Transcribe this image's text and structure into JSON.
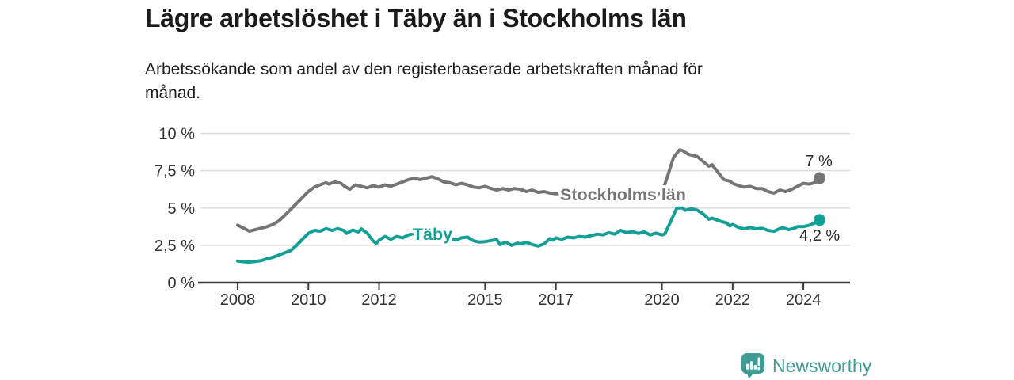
{
  "header": {
    "title": "Lägre arbetslöshet i Täby än i Stockholms län",
    "subtitle": "Arbetssökande som andel av den registerbaserade arbetskraften månad för\nmånad."
  },
  "logo": {
    "text": "Newsworthy",
    "icon": "newsworthy-speech-bubble-bar-chart-icon",
    "color": "#3E9C94"
  },
  "colors": {
    "stockholm_line": "#757575",
    "taby_line": "#12A096",
    "axis": "#3a3a3a",
    "gridline": "#dcdcdc",
    "tick_text": "#333333"
  },
  "chart_data": {
    "type": "line",
    "title": "Lägre arbetslöshet i Täby än i Stockholms län",
    "subtitle": "Arbetssökande som andel av den registerbaserade arbetskraften månad för månad.",
    "unit": "%",
    "xlabel": "",
    "ylabel": "",
    "grid": "horizontal",
    "legend_position": "inline-labels",
    "xlim": [
      2006.88,
      2025.32
    ],
    "ylim": [
      0,
      10
    ],
    "x_ticks": [
      {
        "value": 2008,
        "label": "2008"
      },
      {
        "value": 2010,
        "label": "2010"
      },
      {
        "value": 2012,
        "label": "2012"
      },
      {
        "value": 2015,
        "label": "2015"
      },
      {
        "value": 2017,
        "label": "2017"
      },
      {
        "value": 2020,
        "label": "2020"
      },
      {
        "value": 2022,
        "label": "2022"
      },
      {
        "value": 2024,
        "label": "2024"
      }
    ],
    "y_ticks": [
      {
        "value": 0,
        "label": "0 %"
      },
      {
        "value": 2.5,
        "label": "2,5 %"
      },
      {
        "value": 5,
        "label": "5 %"
      },
      {
        "value": 7.5,
        "label": "7,5 %"
      },
      {
        "value": 10,
        "label": "10 %"
      }
    ],
    "series": [
      {
        "name": "Stockholms län",
        "color": "#757575",
        "end_value": 7.0,
        "end_label": "7 %",
        "end_label_offset": {
          "dx": -1,
          "dy": -15
        },
        "label_pos": {
          "x": 2017.12,
          "y": 5.51
        },
        "points": [
          [
            2008.0,
            3.85
          ],
          [
            2008.17,
            3.65
          ],
          [
            2008.33,
            3.45
          ],
          [
            2008.5,
            3.55
          ],
          [
            2008.67,
            3.65
          ],
          [
            2008.83,
            3.75
          ],
          [
            2009.0,
            3.9
          ],
          [
            2009.17,
            4.15
          ],
          [
            2009.33,
            4.5
          ],
          [
            2009.5,
            4.9
          ],
          [
            2009.67,
            5.3
          ],
          [
            2009.83,
            5.7
          ],
          [
            2010.0,
            6.1
          ],
          [
            2010.17,
            6.4
          ],
          [
            2010.33,
            6.55
          ],
          [
            2010.5,
            6.7
          ],
          [
            2010.58,
            6.6
          ],
          [
            2010.75,
            6.75
          ],
          [
            2010.92,
            6.65
          ],
          [
            2011.0,
            6.5
          ],
          [
            2011.17,
            6.25
          ],
          [
            2011.33,
            6.55
          ],
          [
            2011.5,
            6.45
          ],
          [
            2011.67,
            6.35
          ],
          [
            2011.83,
            6.5
          ],
          [
            2012.0,
            6.4
          ],
          [
            2012.17,
            6.55
          ],
          [
            2012.33,
            6.45
          ],
          [
            2012.5,
            6.6
          ],
          [
            2012.67,
            6.75
          ],
          [
            2012.83,
            6.9
          ],
          [
            2013.0,
            7.0
          ],
          [
            2013.17,
            6.9
          ],
          [
            2013.33,
            7.0
          ],
          [
            2013.5,
            7.1
          ],
          [
            2013.67,
            6.95
          ],
          [
            2013.83,
            6.75
          ],
          [
            2014.0,
            6.7
          ],
          [
            2014.17,
            6.55
          ],
          [
            2014.33,
            6.65
          ],
          [
            2014.5,
            6.55
          ],
          [
            2014.67,
            6.4
          ],
          [
            2014.83,
            6.35
          ],
          [
            2015.0,
            6.45
          ],
          [
            2015.17,
            6.3
          ],
          [
            2015.33,
            6.2
          ],
          [
            2015.5,
            6.3
          ],
          [
            2015.67,
            6.2
          ],
          [
            2015.83,
            6.3
          ],
          [
            2016.0,
            6.25
          ],
          [
            2016.17,
            6.1
          ],
          [
            2016.33,
            6.2
          ],
          [
            2016.5,
            6.05
          ],
          [
            2016.67,
            6.1
          ],
          [
            2016.83,
            6.0
          ],
          [
            2017.0,
            5.95
          ],
          [
            2017.25,
            6.0
          ],
          [
            2017.5,
            5.9
          ],
          [
            2017.75,
            5.95
          ],
          [
            2018.0,
            5.85
          ],
          [
            2018.25,
            5.9
          ],
          [
            2018.5,
            5.8
          ],
          [
            2018.75,
            5.85
          ],
          [
            2019.0,
            5.8
          ],
          [
            2019.25,
            5.85
          ],
          [
            2019.5,
            5.8
          ],
          [
            2019.75,
            5.9
          ],
          [
            2020.0,
            6.0
          ],
          [
            2020.17,
            7.2
          ],
          [
            2020.33,
            8.4
          ],
          [
            2020.5,
            8.9
          ],
          [
            2020.58,
            8.85
          ],
          [
            2020.75,
            8.6
          ],
          [
            2020.92,
            8.5
          ],
          [
            2021.0,
            8.45
          ],
          [
            2021.17,
            8.1
          ],
          [
            2021.33,
            7.8
          ],
          [
            2021.42,
            7.9
          ],
          [
            2021.58,
            7.4
          ],
          [
            2021.75,
            6.9
          ],
          [
            2021.92,
            6.8
          ],
          [
            2022.0,
            6.65
          ],
          [
            2022.17,
            6.5
          ],
          [
            2022.33,
            6.4
          ],
          [
            2022.5,
            6.45
          ],
          [
            2022.67,
            6.3
          ],
          [
            2022.83,
            6.3
          ],
          [
            2023.0,
            6.1
          ],
          [
            2023.17,
            6.0
          ],
          [
            2023.33,
            6.2
          ],
          [
            2023.5,
            6.1
          ],
          [
            2023.67,
            6.25
          ],
          [
            2023.83,
            6.45
          ],
          [
            2024.0,
            6.65
          ],
          [
            2024.17,
            6.6
          ],
          [
            2024.33,
            6.7
          ],
          [
            2024.46,
            7.0
          ]
        ]
      },
      {
        "name": "Täby",
        "color": "#12A096",
        "end_value": 4.2,
        "end_label": "4,2 %",
        "end_label_offset": {
          "dx": 0,
          "dy": 26
        },
        "label_pos": {
          "x": 2012.95,
          "y": 2.86
        },
        "points": [
          [
            2008.0,
            1.45
          ],
          [
            2008.17,
            1.4
          ],
          [
            2008.33,
            1.38
          ],
          [
            2008.5,
            1.42
          ],
          [
            2008.67,
            1.48
          ],
          [
            2008.83,
            1.6
          ],
          [
            2009.0,
            1.7
          ],
          [
            2009.17,
            1.85
          ],
          [
            2009.33,
            2.0
          ],
          [
            2009.5,
            2.15
          ],
          [
            2009.67,
            2.5
          ],
          [
            2009.83,
            2.9
          ],
          [
            2010.0,
            3.3
          ],
          [
            2010.17,
            3.5
          ],
          [
            2010.33,
            3.45
          ],
          [
            2010.5,
            3.62
          ],
          [
            2010.67,
            3.5
          ],
          [
            2010.83,
            3.62
          ],
          [
            2011.0,
            3.5
          ],
          [
            2011.08,
            3.3
          ],
          [
            2011.25,
            3.52
          ],
          [
            2011.42,
            3.4
          ],
          [
            2011.5,
            3.6
          ],
          [
            2011.67,
            3.3
          ],
          [
            2011.83,
            2.8
          ],
          [
            2011.92,
            2.62
          ],
          [
            2012.0,
            2.85
          ],
          [
            2012.17,
            3.1
          ],
          [
            2012.33,
            2.9
          ],
          [
            2012.5,
            3.1
          ],
          [
            2012.67,
            3.0
          ],
          [
            2012.83,
            3.2
          ],
          [
            2013.0,
            3.3
          ],
          [
            2013.25,
            3.35
          ],
          [
            2013.5,
            3.3
          ],
          [
            2013.75,
            3.15
          ],
          [
            2014.0,
            2.95
          ],
          [
            2014.17,
            2.85
          ],
          [
            2014.33,
            3.0
          ],
          [
            2014.5,
            3.05
          ],
          [
            2014.67,
            2.8
          ],
          [
            2014.83,
            2.72
          ],
          [
            2015.0,
            2.75
          ],
          [
            2015.17,
            2.82
          ],
          [
            2015.33,
            2.88
          ],
          [
            2015.42,
            2.55
          ],
          [
            2015.58,
            2.72
          ],
          [
            2015.75,
            2.5
          ],
          [
            2015.92,
            2.65
          ],
          [
            2016.0,
            2.6
          ],
          [
            2016.17,
            2.7
          ],
          [
            2016.33,
            2.55
          ],
          [
            2016.5,
            2.45
          ],
          [
            2016.67,
            2.6
          ],
          [
            2016.83,
            2.95
          ],
          [
            2016.92,
            2.85
          ],
          [
            2017.0,
            3.0
          ],
          [
            2017.17,
            2.9
          ],
          [
            2017.33,
            3.05
          ],
          [
            2017.5,
            3.0
          ],
          [
            2017.67,
            3.1
          ],
          [
            2017.83,
            3.05
          ],
          [
            2018.0,
            3.15
          ],
          [
            2018.17,
            3.25
          ],
          [
            2018.33,
            3.2
          ],
          [
            2018.5,
            3.35
          ],
          [
            2018.67,
            3.25
          ],
          [
            2018.83,
            3.5
          ],
          [
            2019.0,
            3.35
          ],
          [
            2019.17,
            3.42
          ],
          [
            2019.33,
            3.3
          ],
          [
            2019.5,
            3.4
          ],
          [
            2019.67,
            3.2
          ],
          [
            2019.83,
            3.32
          ],
          [
            2020.0,
            3.2
          ],
          [
            2020.08,
            3.25
          ],
          [
            2020.25,
            4.1
          ],
          [
            2020.42,
            5.0
          ],
          [
            2020.58,
            5.0
          ],
          [
            2020.67,
            4.85
          ],
          [
            2020.83,
            4.95
          ],
          [
            2021.0,
            4.85
          ],
          [
            2021.17,
            4.6
          ],
          [
            2021.33,
            4.25
          ],
          [
            2021.42,
            4.32
          ],
          [
            2021.5,
            4.25
          ],
          [
            2021.67,
            4.1
          ],
          [
            2021.83,
            4.0
          ],
          [
            2021.92,
            3.8
          ],
          [
            2022.0,
            3.9
          ],
          [
            2022.17,
            3.7
          ],
          [
            2022.33,
            3.6
          ],
          [
            2022.5,
            3.7
          ],
          [
            2022.67,
            3.6
          ],
          [
            2022.83,
            3.65
          ],
          [
            2023.0,
            3.5
          ],
          [
            2023.17,
            3.45
          ],
          [
            2023.33,
            3.62
          ],
          [
            2023.42,
            3.7
          ],
          [
            2023.58,
            3.55
          ],
          [
            2023.75,
            3.65
          ],
          [
            2023.83,
            3.75
          ],
          [
            2024.0,
            3.75
          ],
          [
            2024.17,
            3.85
          ],
          [
            2024.33,
            4.0
          ],
          [
            2024.46,
            4.2
          ]
        ]
      }
    ]
  }
}
